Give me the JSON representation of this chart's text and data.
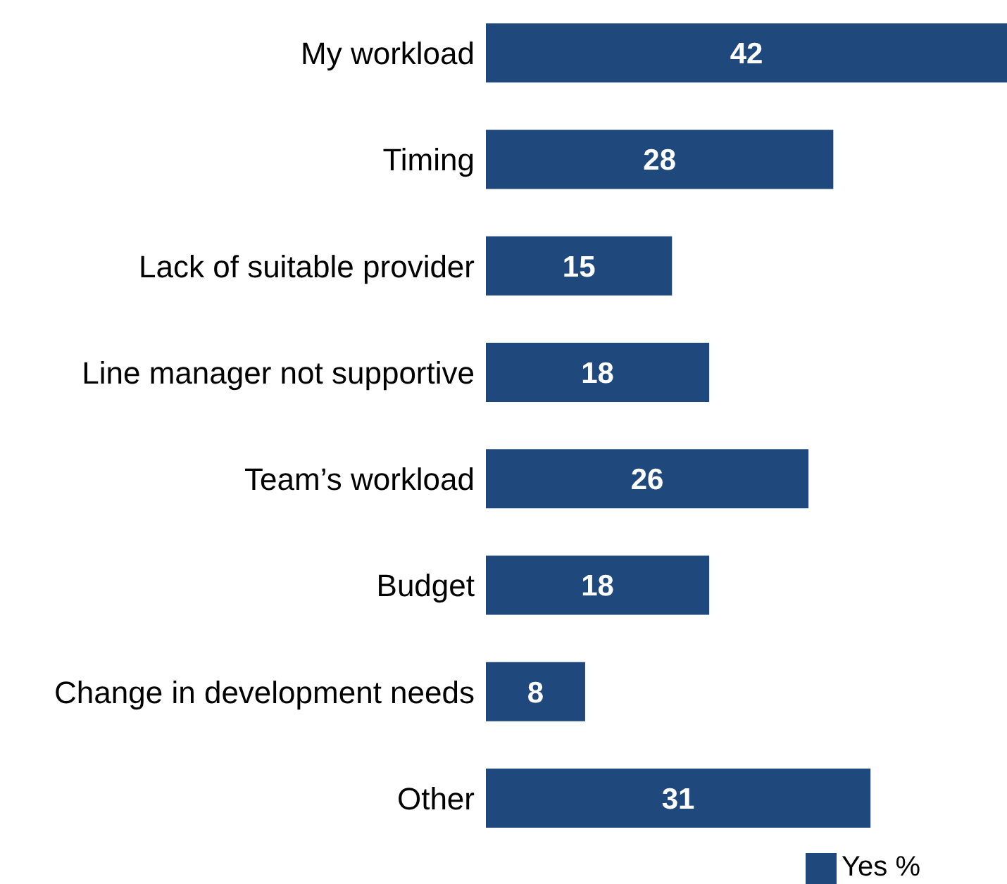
{
  "chart_data": {
    "type": "bar",
    "orientation": "horizontal",
    "categories": [
      "My workload",
      "Timing",
      "Lack of suitable provider",
      "Line manager not supportive",
      "Team’s workload",
      "Budget",
      "Change in development needs",
      "Other"
    ],
    "series": [
      {
        "name": "Yes %",
        "color": "#1f497d",
        "values": [
          42,
          28,
          15,
          18,
          26,
          18,
          8,
          31
        ]
      }
    ],
    "data_labels": true,
    "legend": "bottom",
    "grid": false
  }
}
